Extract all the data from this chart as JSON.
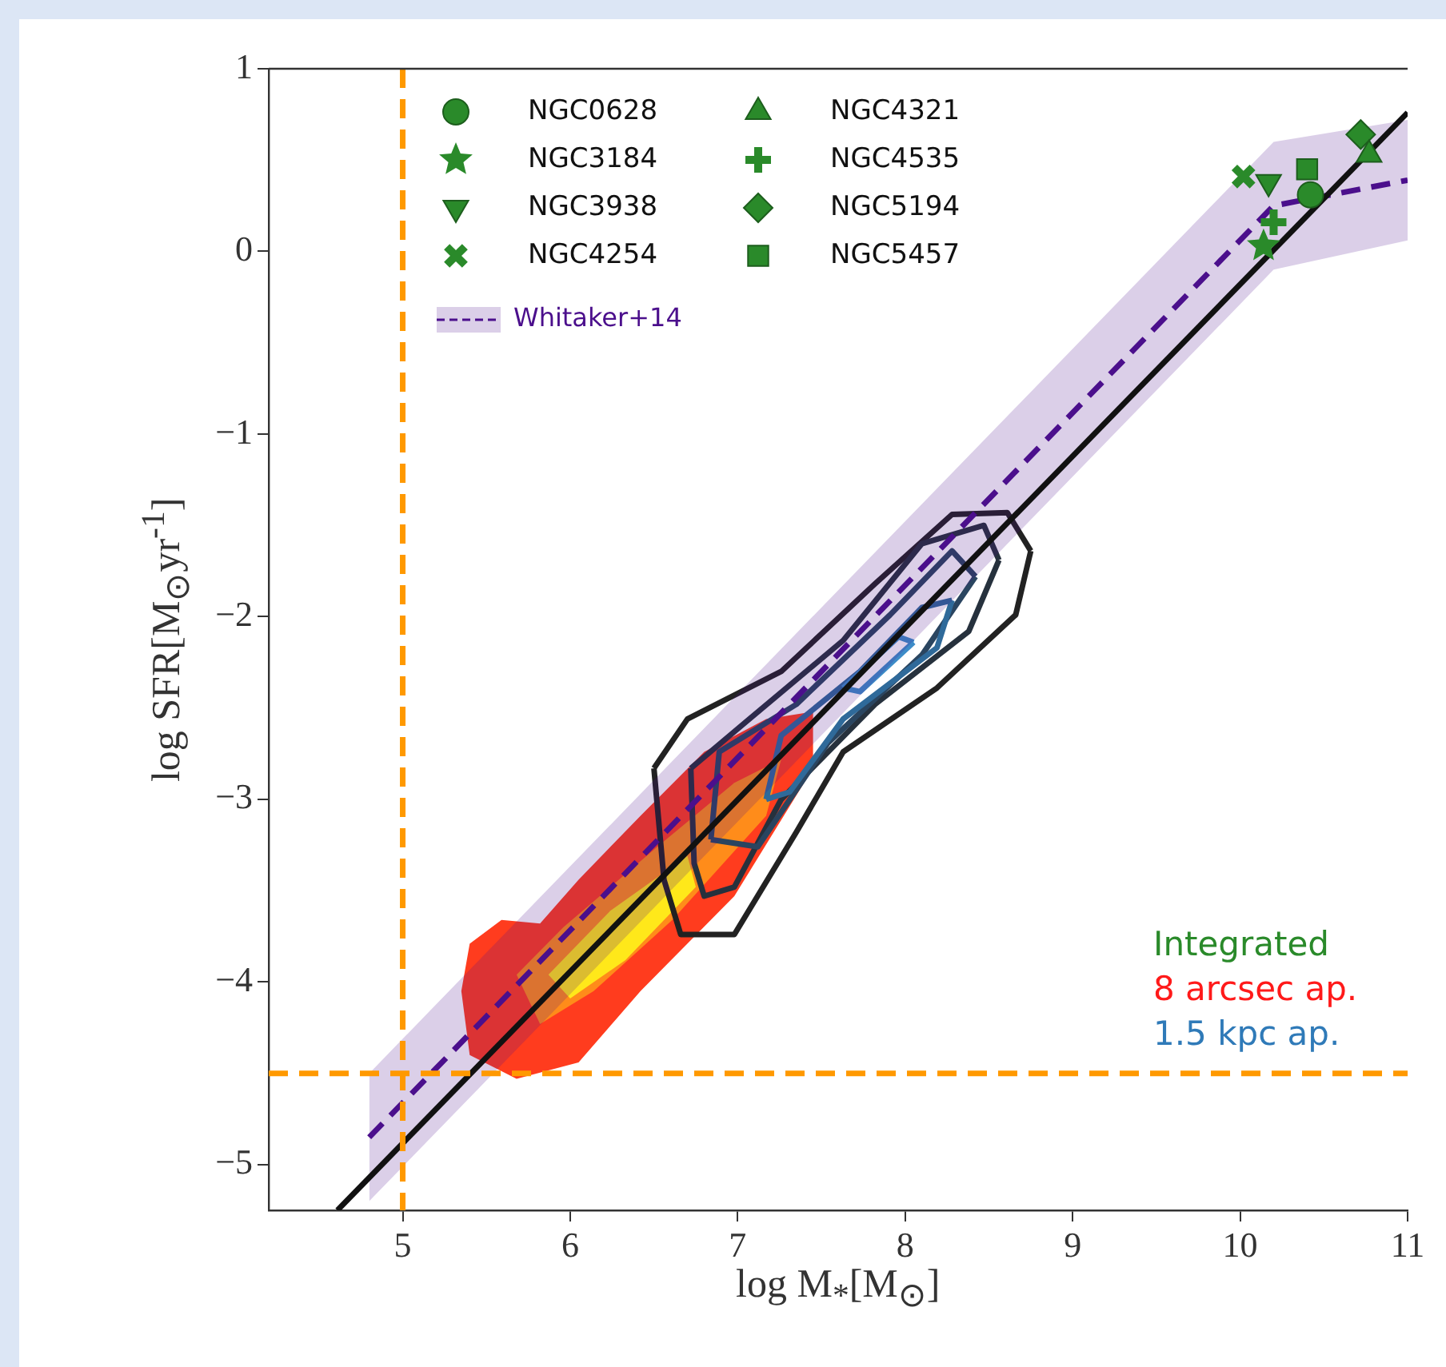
{
  "chart_data": {
    "type": "scatter",
    "xlabel": "log M$_{*}$[M$_{⊙}$]",
    "ylabel": "log SFR[M$_{⊙}$yr$^{-1}$]",
    "xlim": [
      4.2,
      11
    ],
    "xticks": [
      5,
      6,
      7,
      8,
      9,
      10,
      11
    ],
    "ylim": [
      -5.25,
      1
    ],
    "yticks": [
      -5,
      -4,
      -3,
      -2,
      -1,
      0,
      1
    ],
    "grid": false,
    "legend": "top left",
    "annotations": [
      "Integrated",
      "8 arcsec ap.",
      "1.5 kpc ap."
    ],
    "ref_lines": [
      {
        "axis": "x",
        "value": 5,
        "color": "#ff9900",
        "line_style": "dashed"
      },
      {
        "axis": "y",
        "value": -4.5,
        "color": "#ff9900",
        "line_style": "dashed"
      }
    ],
    "series": [
      {
        "type": "area",
        "color": "#ff3c1e",
        "x": [
          5.35,
          5.4,
          5.59,
          5.82,
          6.05,
          6.42,
          6.8,
          7.17,
          7.45,
          7.45,
          6.98,
          6.42,
          6.05,
          5.68,
          5.4,
          5.35
        ],
        "values": [
          -4.05,
          -3.79,
          -3.66,
          -3.68,
          -3.44,
          -3.09,
          -2.74,
          -2.56,
          -2.52,
          -2.83,
          -3.53,
          -4.05,
          -4.44,
          -4.53,
          -4.4,
          -4.05
        ]
      },
      {
        "type": "area",
        "color": "#ff8c1a",
        "x": [
          5.68,
          5.96,
          6.52,
          6.98,
          7.26,
          7.17,
          6.61,
          6.14,
          5.82,
          5.68
        ],
        "values": [
          -3.96,
          -3.7,
          -3.26,
          -2.91,
          -2.78,
          -3.09,
          -3.66,
          -4.05,
          -4.23,
          -3.96
        ]
      },
      {
        "type": "area",
        "color": "#ffe81a",
        "x": [
          5.87,
          6.24,
          6.7,
          6.75,
          6.33,
          6.0,
          5.87
        ],
        "values": [
          -3.96,
          -3.61,
          -3.31,
          -3.48,
          -3.88,
          -4.09,
          -3.96
        ]
      },
      {
        "type": "line",
        "color": "#222222",
        "x": [
          6.5,
          6.7,
          7.26,
          7.82,
          8.28,
          8.61,
          8.75
        ],
        "values": [
          -2.83,
          -2.56,
          -2.3,
          -1.82,
          -1.44,
          -1.43,
          -1.64
        ]
      },
      {
        "type": "line",
        "color": "#222222",
        "x": [
          6.5,
          6.56,
          6.66,
          6.98,
          7.35,
          7.63,
          8.19,
          8.66,
          8.75
        ],
        "values": [
          -2.83,
          -3.44,
          -3.74,
          -3.74,
          -3.18,
          -2.74,
          -2.39,
          -1.99,
          -1.64
        ]
      },
      {
        "type": "line",
        "color": "#26313d",
        "x": [
          6.72,
          7.07,
          7.63,
          8.1,
          8.47,
          8.56
        ],
        "values": [
          -2.83,
          -2.56,
          -2.13,
          -1.6,
          -1.5,
          -1.69
        ]
      },
      {
        "type": "line",
        "color": "#26313d",
        "x": [
          6.72,
          6.74,
          6.8,
          6.98,
          7.26,
          7.82,
          8.38,
          8.56
        ],
        "values": [
          -2.83,
          -3.35,
          -3.53,
          -3.48,
          -3.0,
          -2.48,
          -2.08,
          -1.69
        ]
      },
      {
        "type": "line",
        "color": "#2a4560",
        "x": [
          6.84,
          6.89,
          7.35,
          7.91,
          8.28,
          8.42
        ],
        "values": [
          -3.22,
          -2.74,
          -2.48,
          -1.99,
          -1.64,
          -1.78
        ]
      },
      {
        "type": "line",
        "color": "#2a4560",
        "x": [
          6.84,
          7.12,
          7.54,
          8.1,
          8.42
        ],
        "values": [
          -3.22,
          -3.26,
          -2.69,
          -2.21,
          -1.78
        ]
      },
      {
        "type": "line",
        "color": "#2f6a9a",
        "x": [
          7.17,
          7.26,
          7.73,
          8.1,
          8.28
        ],
        "values": [
          -3.0,
          -2.65,
          -2.3,
          -1.95,
          -1.91
        ]
      },
      {
        "type": "line",
        "color": "#2f6a9a",
        "x": [
          7.17,
          7.31,
          7.63,
          8.19,
          8.28
        ],
        "values": [
          -3.0,
          -2.96,
          -2.56,
          -2.17,
          -1.91
        ]
      },
      {
        "type": "line",
        "color": "#3d8cc8",
        "x": [
          7.63,
          7.96,
          8.05
        ],
        "values": [
          -2.39,
          -2.11,
          -2.14
        ]
      },
      {
        "type": "line",
        "color": "#3d8cc8",
        "x": [
          7.63,
          7.73,
          8.05
        ],
        "values": [
          -2.39,
          -2.41,
          -2.14
        ]
      },
      {
        "name": "Whitaker+14",
        "type": "line",
        "line_style": "dashed",
        "color": "#4b0f8c",
        "x": [
          4.8,
          10.2,
          11
        ],
        "values": [
          -4.85,
          0.25,
          0.39
        ],
        "lower": [
          -5.2,
          -0.1,
          0.06
        ],
        "upper": [
          -4.5,
          0.6,
          0.72
        ]
      },
      {
        "type": "line",
        "color": "#111111",
        "x": [
          4.61,
          11
        ],
        "values": [
          -5.25,
          0.76
        ]
      },
      {
        "name": "NGC0628",
        "marker": "circle",
        "color": "#2a8a2a",
        "x": [
          10.42
        ],
        "values": [
          0.31
        ]
      },
      {
        "name": "NGC3184",
        "marker": "star",
        "color": "#2a8a2a",
        "x": [
          10.14
        ],
        "values": [
          0.03
        ]
      },
      {
        "name": "NGC3938",
        "marker": "triangle_down",
        "color": "#2a8a2a",
        "x": [
          10.17
        ],
        "values": [
          0.38
        ]
      },
      {
        "name": "NGC4254",
        "marker": "x",
        "color": "#2a8a2a",
        "x": [
          10.02
        ],
        "values": [
          0.41
        ]
      },
      {
        "name": "NGC4321",
        "marker": "triangle",
        "color": "#2a8a2a",
        "x": [
          10.77
        ],
        "values": [
          0.53
        ]
      },
      {
        "name": "NGC4535",
        "marker": "plus",
        "color": "#2a8a2a",
        "x": [
          10.2
        ],
        "values": [
          0.16
        ]
      },
      {
        "name": "NGC5194",
        "marker": "diamond",
        "color": "#2a8a2a",
        "x": [
          10.72
        ],
        "values": [
          0.64
        ]
      },
      {
        "name": "NGC5457",
        "marker": "square",
        "color": "#2a8a2a",
        "x": [
          10.4
        ],
        "values": [
          0.45
        ]
      }
    ]
  }
}
